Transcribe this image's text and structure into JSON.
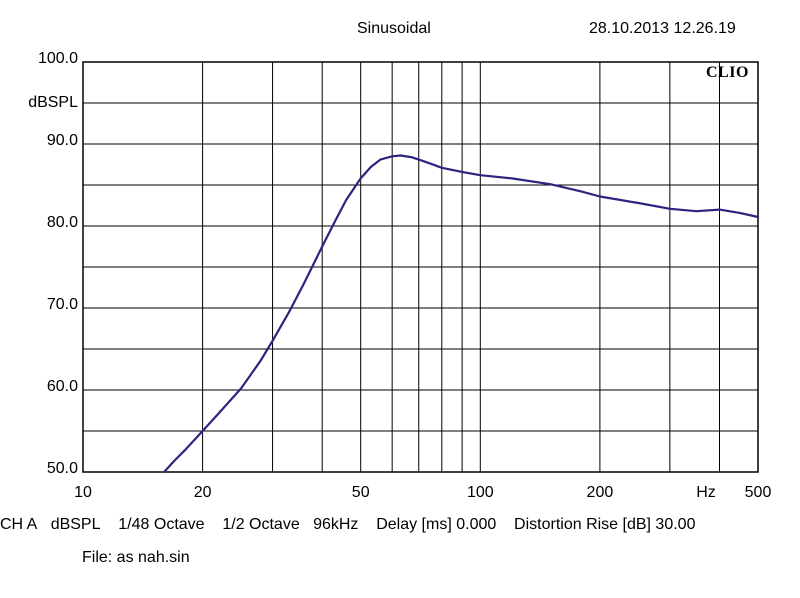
{
  "header": {
    "title": "Sinusoidal",
    "timestamp": "28.10.2013 12.26.19"
  },
  "brand": "CLIO",
  "footer": {
    "channel": "CH A",
    "unit": "dBSPL",
    "resolution": "1/48 Octave",
    "smoothing": "1/2 Octave",
    "sample_rate": "96kHz",
    "delay": "Delay [ms] 0.000",
    "distortion": "Distortion Rise [dB] 30.00",
    "file": "File: as nah.sin"
  },
  "colors": {
    "curve": "#2b2580",
    "grid": "#000000"
  },
  "chart_data": {
    "type": "line",
    "title": "Sinusoidal",
    "ylabel": "dBSPL",
    "xlabel": "Hz",
    "x_scale": "log",
    "xlim": [
      10,
      500
    ],
    "ylim": [
      50,
      100
    ],
    "y_ticks": [
      "100.0",
      "90.0",
      "80.0",
      "70.0",
      "60.0",
      "50.0"
    ],
    "x_ticks": [
      "10",
      "20",
      "50",
      "100",
      "200",
      "Hz",
      "500"
    ],
    "grid": true,
    "series": [
      {
        "x": [
          16,
          17,
          18,
          20,
          22,
          25,
          28,
          30,
          33,
          36,
          40,
          43,
          46,
          50,
          53,
          56,
          60,
          63,
          67,
          70,
          75,
          80,
          90,
          100,
          120,
          150,
          180,
          200,
          250,
          300,
          350,
          400,
          450,
          500
        ],
        "values": [
          50,
          51.4,
          52.6,
          55,
          57.2,
          60.2,
          63.6,
          66,
          69.5,
          73,
          77.5,
          80.5,
          83.2,
          85.8,
          87.2,
          88.1,
          88.5,
          88.6,
          88.4,
          88.1,
          87.6,
          87.1,
          86.6,
          86.2,
          85.8,
          85.1,
          84.2,
          83.6,
          82.8,
          82.1,
          81.8,
          82,
          81.6,
          81.1
        ]
      }
    ]
  }
}
